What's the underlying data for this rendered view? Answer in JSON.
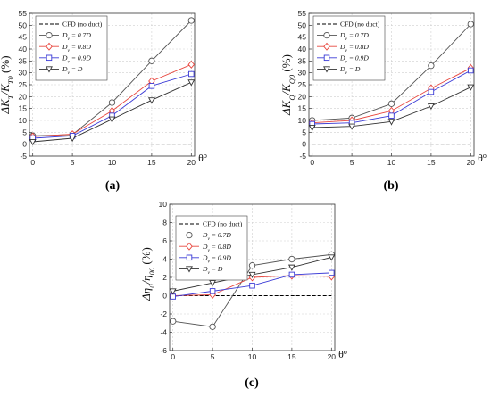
{
  "chart_data": [
    {
      "type": "line",
      "panel_label": "(a)",
      "ylabel": "ΔK_T/K_T0 (%)",
      "xlabel": "θ°",
      "x": [
        0,
        5,
        10,
        15,
        20
      ],
      "xticks": [
        "0",
        "5",
        "10",
        "15",
        "20"
      ],
      "ylim": [
        -5,
        55
      ],
      "yticks": [
        "-5",
        "0",
        "5",
        "10",
        "15",
        "20",
        "25",
        "30",
        "35",
        "40",
        "45",
        "50",
        "55"
      ],
      "grid": true,
      "legend_position": "top-left",
      "series": [
        {
          "name": "CFD (no duct)",
          "style": "dashed",
          "marker": "none",
          "color": "#000000",
          "values": [
            0,
            0,
            0,
            0,
            0
          ]
        },
        {
          "name": "D_v = 0.7D",
          "style": "solid",
          "marker": "circle",
          "color": "#555555",
          "values": [
            3.5,
            4.0,
            17.5,
            35.0,
            52.0
          ]
        },
        {
          "name": "D_v = 0.8D",
          "style": "solid",
          "marker": "diamond",
          "color": "#e8473f",
          "values": [
            3.2,
            4.2,
            14.0,
            26.5,
            33.5
          ]
        },
        {
          "name": "D_v = 0.9D",
          "style": "solid",
          "marker": "square",
          "color": "#3b3bd6",
          "values": [
            2.5,
            3.5,
            12.0,
            24.5,
            29.5
          ]
        },
        {
          "name": "D_v = D",
          "style": "solid",
          "marker": "triangle-down",
          "color": "#333333",
          "values": [
            1.0,
            2.5,
            10.5,
            18.5,
            26.0
          ]
        }
      ]
    },
    {
      "type": "line",
      "panel_label": "(b)",
      "ylabel": "ΔK_Q/K_Q0 (%)",
      "xlabel": "θ°",
      "x": [
        0,
        5,
        10,
        15,
        20
      ],
      "xticks": [
        "0",
        "5",
        "10",
        "15",
        "20"
      ],
      "ylim": [
        -5,
        55
      ],
      "yticks": [
        "-5",
        "0",
        "5",
        "10",
        "15",
        "20",
        "25",
        "30",
        "35",
        "40",
        "45",
        "50",
        "55"
      ],
      "grid": true,
      "legend_position": "top-left",
      "series": [
        {
          "name": "CFD (no duct)",
          "style": "dashed",
          "marker": "none",
          "color": "#000000",
          "values": [
            0,
            0,
            0,
            0,
            0
          ]
        },
        {
          "name": "D_v = 0.7D",
          "style": "solid",
          "marker": "circle",
          "color": "#555555",
          "values": [
            10.0,
            11.0,
            17.0,
            33.0,
            50.5
          ]
        },
        {
          "name": "D_v = 0.8D",
          "style": "solid",
          "marker": "diamond",
          "color": "#e8473f",
          "values": [
            9.0,
            10.0,
            14.0,
            23.5,
            32.0
          ]
        },
        {
          "name": "D_v = 0.9D",
          "style": "solid",
          "marker": "square",
          "color": "#3b3bd6",
          "values": [
            8.5,
            9.0,
            12.0,
            22.0,
            31.0
          ]
        },
        {
          "name": "D_v = D",
          "style": "solid",
          "marker": "triangle-down",
          "color": "#333333",
          "values": [
            7.0,
            7.5,
            9.5,
            16.0,
            24.0
          ]
        }
      ]
    },
    {
      "type": "line",
      "panel_label": "(c)",
      "ylabel": "Δη0/η00 (%)",
      "xlabel": "θ°",
      "x": [
        0,
        5,
        10,
        15,
        20
      ],
      "xticks": [
        "0",
        "5",
        "10",
        "15",
        "20"
      ],
      "ylim": [
        -6,
        10
      ],
      "yticks": [
        "-6",
        "-4",
        "-2",
        "0",
        "2",
        "4",
        "6",
        "8",
        "10"
      ],
      "grid": true,
      "legend_position": "top-left",
      "series": [
        {
          "name": "CFD (no duct)",
          "style": "dashed",
          "marker": "none",
          "color": "#000000",
          "values": [
            0,
            0,
            0,
            0,
            0
          ]
        },
        {
          "name": "D_v = 0.7D",
          "style": "solid",
          "marker": "circle",
          "color": "#555555",
          "values": [
            -2.8,
            -3.4,
            3.3,
            4.0,
            4.5
          ]
        },
        {
          "name": "D_v = 0.8D",
          "style": "solid",
          "marker": "diamond",
          "color": "#e8473f",
          "values": [
            0.0,
            0.1,
            2.0,
            2.2,
            2.1
          ]
        },
        {
          "name": "D_v = 0.9D",
          "style": "solid",
          "marker": "square",
          "color": "#3b3bd6",
          "values": [
            -0.1,
            0.5,
            1.1,
            2.3,
            2.5
          ]
        },
        {
          "name": "D_v = D",
          "style": "solid",
          "marker": "triangle-down",
          "color": "#333333",
          "values": [
            0.5,
            1.4,
            2.3,
            3.1,
            4.2
          ]
        }
      ]
    }
  ]
}
